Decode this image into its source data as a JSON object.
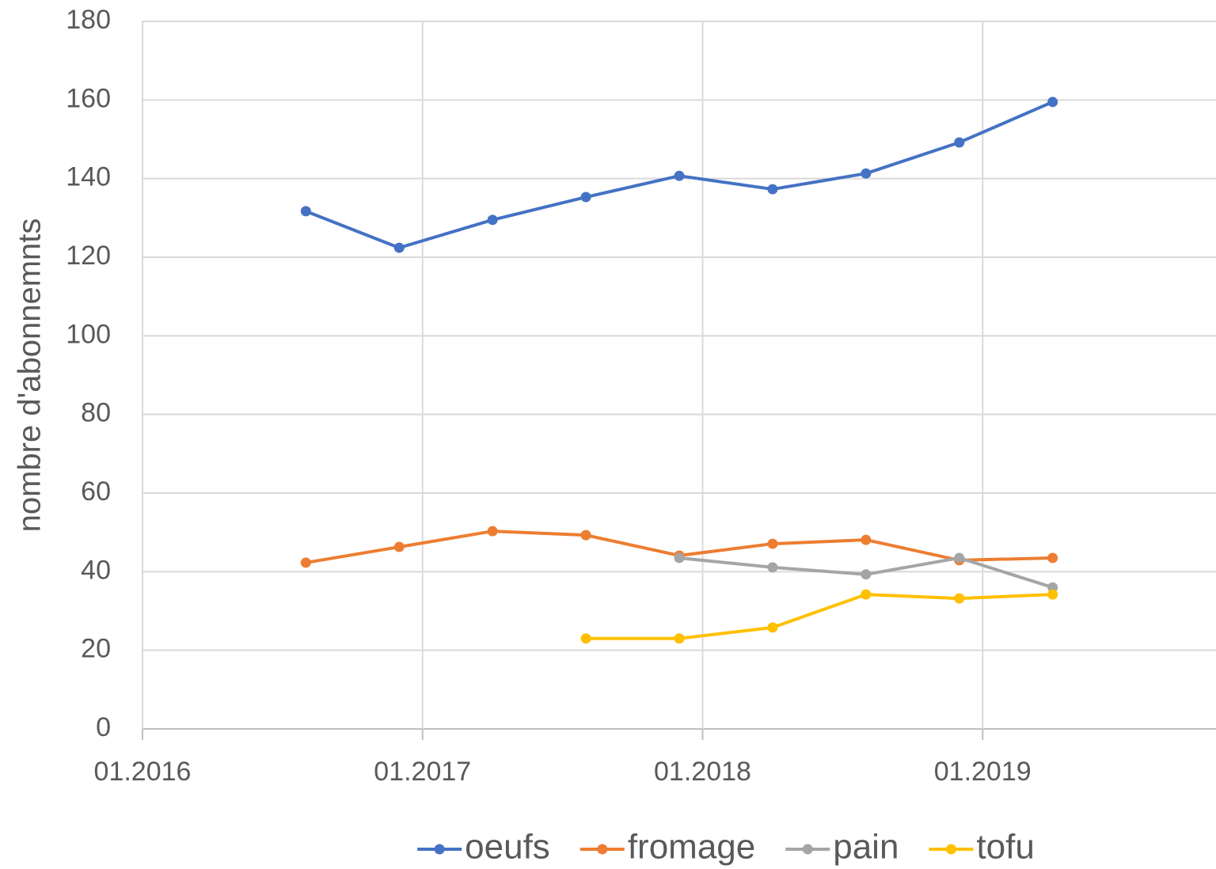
{
  "chart_data": {
    "type": "line",
    "y_label": "nombre d'abonnemnts",
    "x": [
      "2016-08",
      "2016-12",
      "2017-04",
      "2017-08",
      "2017-12",
      "2018-04",
      "2018-08",
      "2018-12",
      "2019-04"
    ],
    "xlim": [
      "2016-01",
      "2019-11"
    ],
    "xticks": [
      {
        "value": "2016-01",
        "label": "01.2016"
      },
      {
        "value": "2017-01",
        "label": "01.2017"
      },
      {
        "value": "2018-01",
        "label": "01.2018"
      },
      {
        "value": "2019-01",
        "label": "01.2019"
      }
    ],
    "ylim": [
      0,
      180
    ],
    "yticks": [
      0,
      20,
      40,
      60,
      80,
      100,
      120,
      140,
      160,
      180
    ],
    "grid": true,
    "legend": "bottom",
    "series": [
      {
        "name": "oeufs",
        "color": "#4472c4",
        "values": [
          131.7,
          122.4,
          129.5,
          135.3,
          140.7,
          137.3,
          141.3,
          149.2,
          159.5
        ]
      },
      {
        "name": "fromage",
        "color": "#ed7d31",
        "values": [
          42.3,
          46.3,
          50.3,
          49.3,
          44.1,
          47.1,
          48.1,
          42.9,
          43.5
        ]
      },
      {
        "name": "pain",
        "color": "#a5a5a5",
        "values": [
          null,
          null,
          null,
          null,
          43.5,
          41.1,
          39.3,
          43.5,
          36
        ]
      },
      {
        "name": "tofu",
        "color": "#ffc000",
        "values": [
          null,
          null,
          null,
          23,
          23,
          25.8,
          34.2,
          33.2,
          34.2
        ]
      }
    ]
  }
}
